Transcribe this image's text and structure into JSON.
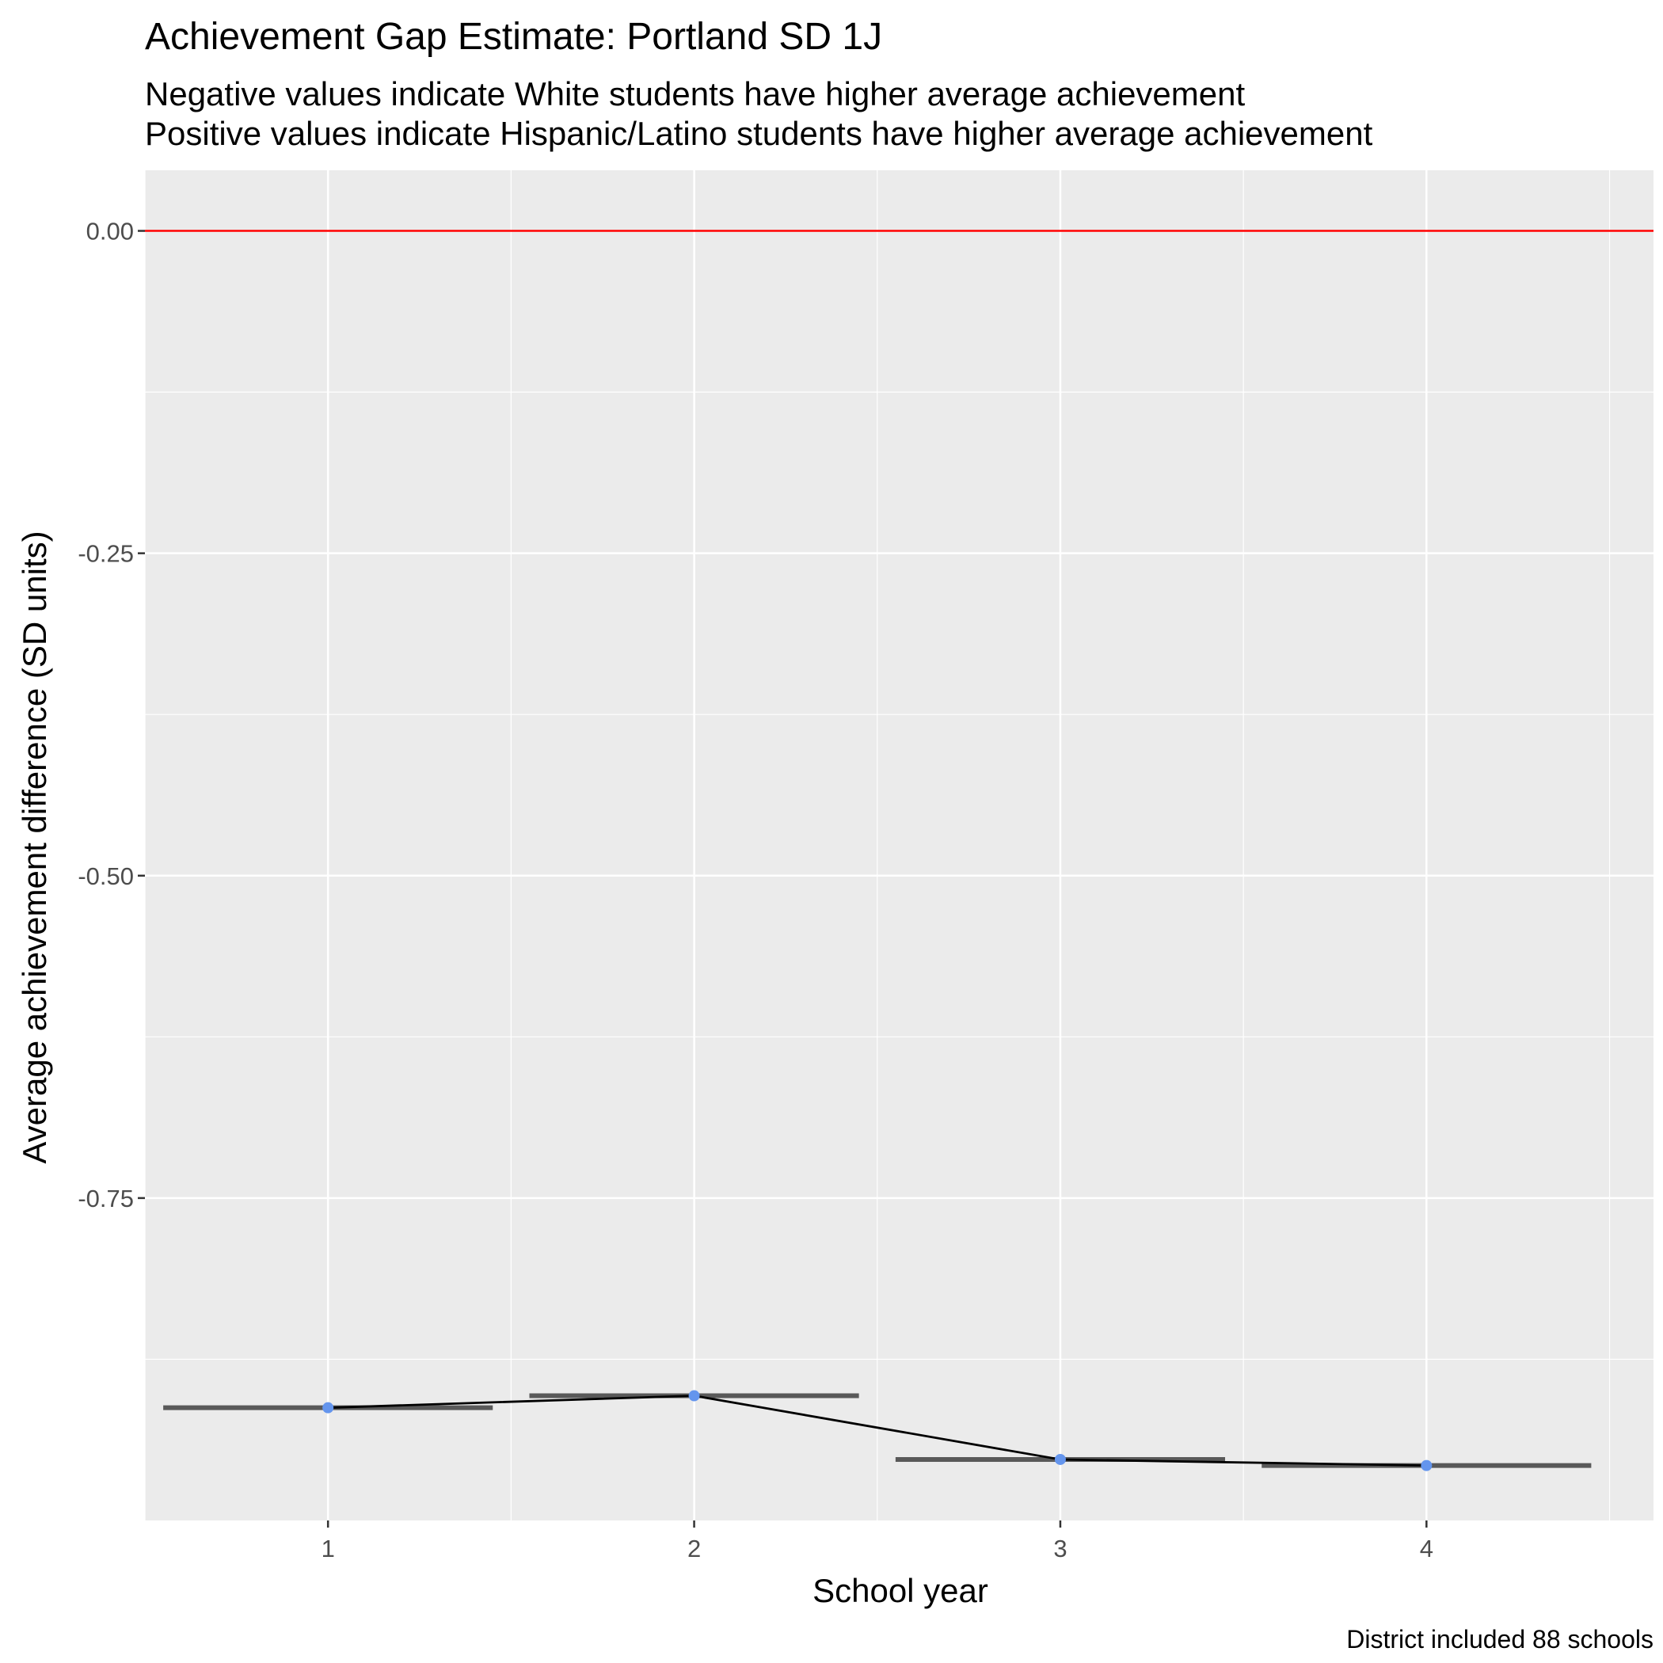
{
  "chart_data": {
    "type": "line",
    "title": "Achievement Gap Estimate: Portland SD 1J",
    "subtitle_lines": [
      "Negative values indicate White students have higher average achievement",
      "Positive values indicate Hispanic/Latino students have higher average achievement"
    ],
    "xlabel": "School year",
    "ylabel": "Average achievement difference (SD units)",
    "caption": "District included 88 schools",
    "x": [
      1,
      2,
      3,
      4
    ],
    "x_tick_labels": [
      "1",
      "2",
      "3",
      "4"
    ],
    "xlim": [
      0.5,
      4.62
    ],
    "series": [
      {
        "values": [
          -0.9126,
          -0.9033,
          -0.9527,
          -0.9574
        ],
        "interval_bars": [
          -0.9126,
          -0.9033,
          -0.9527,
          -0.9574
        ],
        "point_color": "#6495ED",
        "line_color": "#000000"
      }
    ],
    "reference_line": {
      "y": 0.0,
      "color": "#FF0000"
    },
    "y_ticks": [
      0.0,
      -0.25,
      -0.5,
      -0.75
    ],
    "y_tick_labels": [
      "0.00",
      "-0.25",
      "-0.50",
      "-0.75"
    ],
    "ylim": [
      -1.0,
      0.047
    ],
    "grid": true,
    "colors": {
      "panel_background": "#EBEBEB",
      "grid_major": "#FFFFFF",
      "interval_bar": "#595959"
    }
  }
}
